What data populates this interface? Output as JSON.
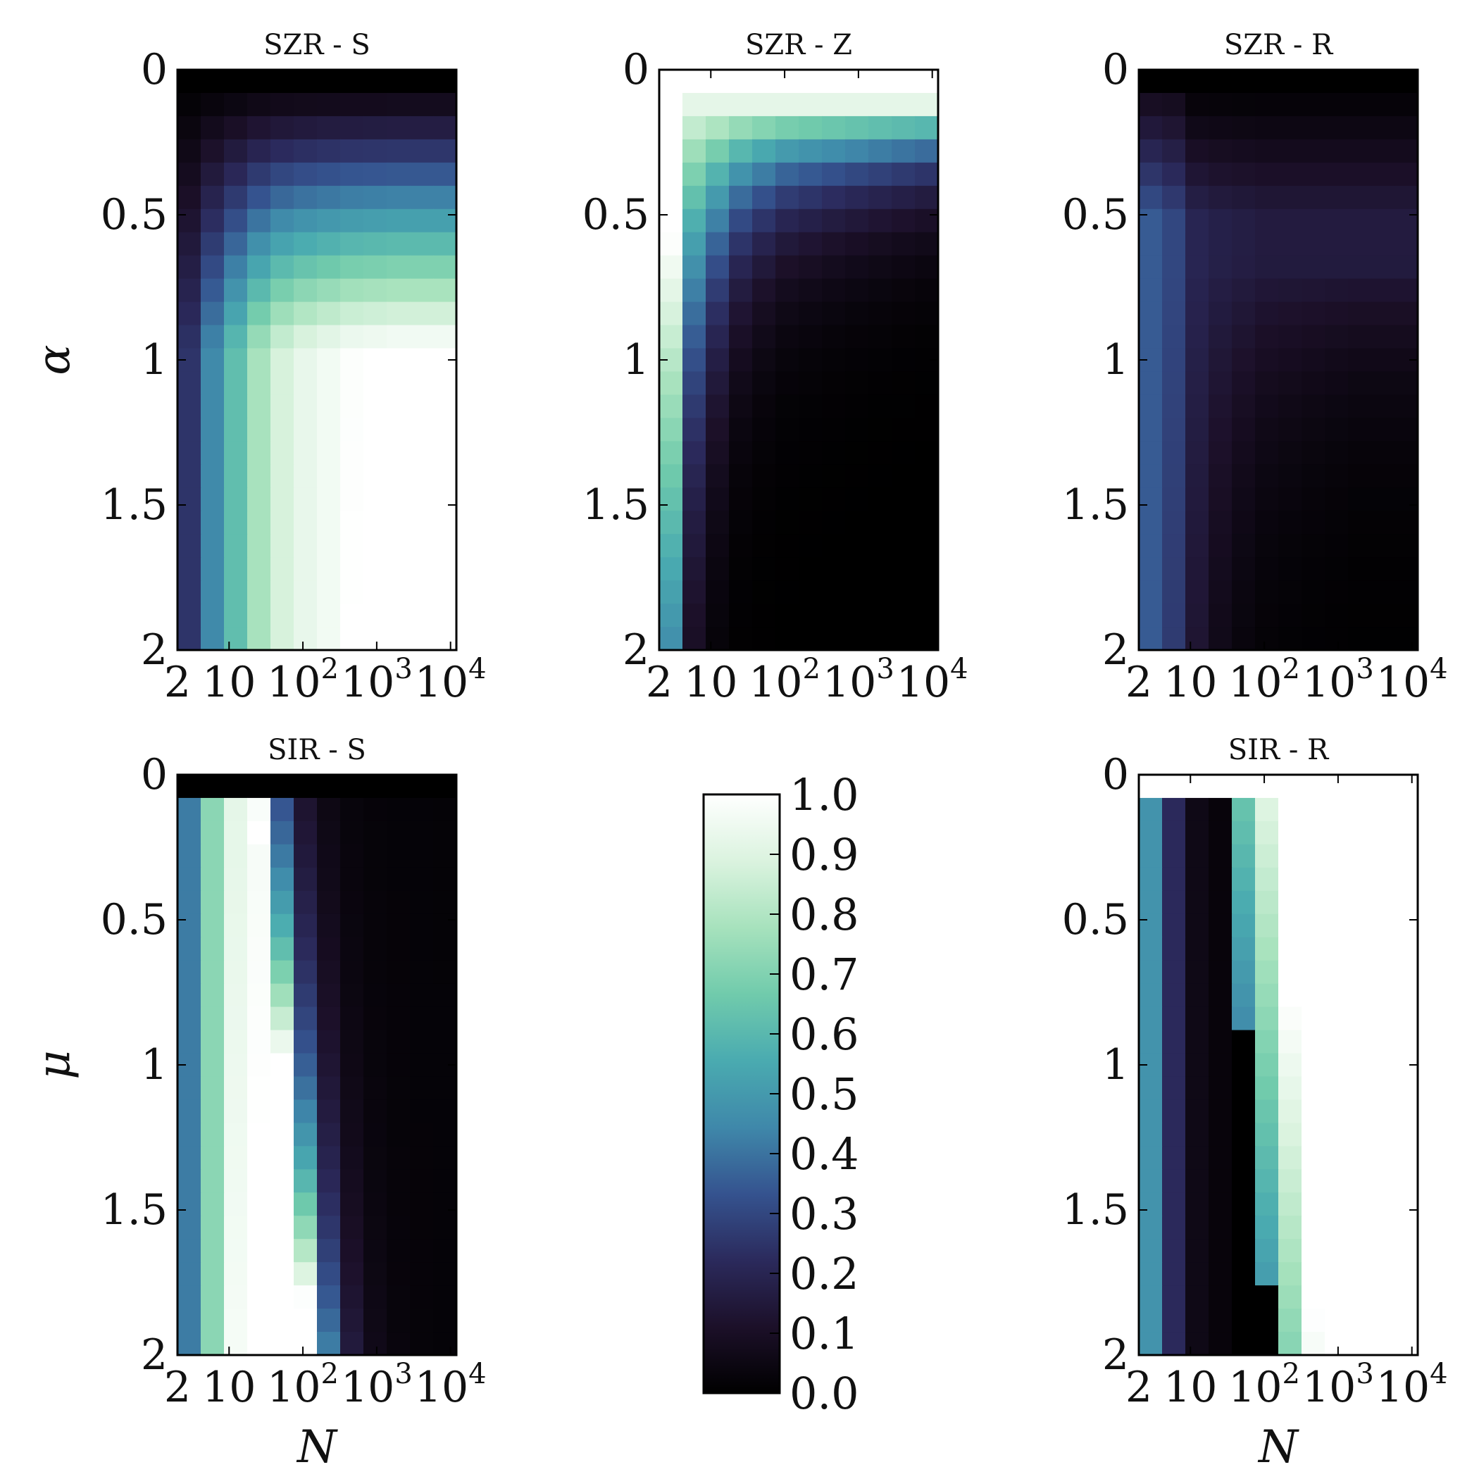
{
  "chart_data": [
    {
      "type": "heatmap",
      "title": "SZR - S",
      "ylabel": "α",
      "xlabel": "",
      "y_range": [
        0,
        2
      ],
      "x_scale": "log",
      "x_range": [
        2,
        12000
      ],
      "grid": false,
      "yticks": [
        "0",
        "0.5",
        "1",
        "1.5",
        "2"
      ],
      "xticks": [
        "2",
        "10",
        "10^2",
        "10^3",
        "10^4"
      ],
      "model": "szr_s"
    },
    {
      "type": "heatmap",
      "title": "SZR - Z",
      "ylabel": "",
      "xlabel": "",
      "y_range": [
        0,
        2
      ],
      "x_scale": "log",
      "x_range": [
        2,
        12000
      ],
      "grid": false,
      "yticks": [
        "0",
        "0.5",
        "1",
        "1.5",
        "2"
      ],
      "xticks": [
        "2",
        "10",
        "10^2",
        "10^3",
        "10^4"
      ],
      "model": "szr_z"
    },
    {
      "type": "heatmap",
      "title": "SZR - R",
      "ylabel": "",
      "xlabel": "",
      "y_range": [
        0,
        2
      ],
      "x_scale": "log",
      "x_range": [
        2,
        12000
      ],
      "grid": false,
      "yticks": [
        "0",
        "0.5",
        "1",
        "1.5",
        "2"
      ],
      "xticks": [
        "2",
        "10",
        "10^2",
        "10^3",
        "10^4"
      ],
      "model": "szr_r"
    },
    {
      "type": "heatmap",
      "title": "SIR - S",
      "ylabel": "μ",
      "xlabel": "N",
      "y_range": [
        0,
        2
      ],
      "x_scale": "log",
      "x_range": [
        2,
        12000
      ],
      "grid": false,
      "yticks": [
        "0",
        "0.5",
        "1",
        "1.5",
        "2"
      ],
      "xticks": [
        "2",
        "10",
        "10^2",
        "10^3",
        "10^4"
      ],
      "model": "sir_s"
    },
    {
      "type": "heatmap",
      "title": "SIR - R",
      "ylabel": "",
      "xlabel": "N",
      "y_range": [
        0,
        2
      ],
      "x_scale": "log",
      "x_range": [
        2,
        12000
      ],
      "grid": false,
      "yticks": [
        "0",
        "0.5",
        "1",
        "1.5",
        "2"
      ],
      "xticks": [
        "2",
        "10",
        "10^2",
        "10^3",
        "10^4"
      ],
      "model": "sir_r"
    }
  ],
  "colorbar": {
    "range": [
      0.0,
      1.0
    ],
    "ticks": [
      "0.0",
      "0.1",
      "0.2",
      "0.3",
      "0.4",
      "0.5",
      "0.6",
      "0.7",
      "0.8",
      "0.9",
      "1.0"
    ],
    "colormap": "mako_r",
    "stops": [
      "#000000",
      "#1c1029",
      "#2b2a5c",
      "#35538f",
      "#3f88aa",
      "#4aabb0",
      "#71cbac",
      "#a7e2bd",
      "#dbf3df",
      "#ffffff"
    ]
  },
  "grid_cells": {
    "cols": 12,
    "rows": 25
  }
}
